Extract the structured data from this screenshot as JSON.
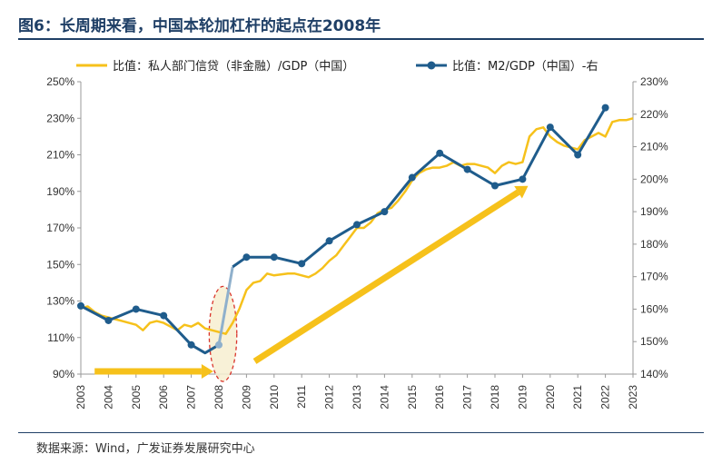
{
  "title": "图6：长周期来看，中国本轮加杠杆的起点在2008年",
  "source": "数据来源：Wind，广发证券发展研究中心",
  "colors": {
    "private": "#f6c11b",
    "m2": "#1f5c8c",
    "title": "#1f3f66",
    "arrow": "#f6c11b",
    "ellipse": "#d9342b"
  },
  "chart_data": {
    "type": "line",
    "x": [
      2003,
      2004,
      2005,
      2006,
      2007,
      2008,
      2009,
      2010,
      2011,
      2012,
      2013,
      2014,
      2015,
      2016,
      2017,
      2018,
      2019,
      2020,
      2021,
      2022,
      2023
    ],
    "x_tick_labels": [
      "2003",
      "2004",
      "2005",
      "2006",
      "2007",
      "2008",
      "2009",
      "2010",
      "2011",
      "2012",
      "2013",
      "2014",
      "2015",
      "2016",
      "2017",
      "2018",
      "2019",
      "2020",
      "2021",
      "2022",
      "2023"
    ],
    "xlim": [
      2003,
      2023
    ],
    "y_left": {
      "ylim": [
        90,
        250
      ],
      "ticks": [
        "90%",
        "110%",
        "130%",
        "150%",
        "170%",
        "190%",
        "210%",
        "230%",
        "250%"
      ],
      "tick_values": [
        90,
        110,
        130,
        150,
        170,
        190,
        210,
        230,
        250
      ]
    },
    "y_right": {
      "ylim": [
        140,
        230
      ],
      "ticks": [
        "140%",
        "150%",
        "160%",
        "170%",
        "180%",
        "190%",
        "200%",
        "210%",
        "220%",
        "230%"
      ],
      "tick_values": [
        140,
        150,
        160,
        170,
        180,
        190,
        200,
        210,
        220,
        230
      ]
    },
    "series": [
      {
        "name": "比值：私人部门信贷（非金融）/GDP（中国）",
        "axis": "left",
        "marker": false,
        "points": [
          [
            2003.0,
            126
          ],
          [
            2003.25,
            127
          ],
          [
            2003.5,
            124
          ],
          [
            2003.75,
            122
          ],
          [
            2004.0,
            121
          ],
          [
            2004.5,
            119
          ],
          [
            2005.0,
            117
          ],
          [
            2005.25,
            114
          ],
          [
            2005.5,
            118
          ],
          [
            2005.75,
            119
          ],
          [
            2006.0,
            118
          ],
          [
            2006.25,
            116
          ],
          [
            2006.5,
            114
          ],
          [
            2006.75,
            117
          ],
          [
            2007.0,
            116
          ],
          [
            2007.25,
            118
          ],
          [
            2007.5,
            115
          ],
          [
            2007.75,
            114
          ],
          [
            2008.0,
            113
          ],
          [
            2008.25,
            112
          ],
          [
            2008.5,
            118
          ],
          [
            2008.75,
            126
          ],
          [
            2009.0,
            136
          ],
          [
            2009.25,
            140
          ],
          [
            2009.5,
            141
          ],
          [
            2009.75,
            145
          ],
          [
            2010.0,
            144
          ],
          [
            2010.5,
            145
          ],
          [
            2010.75,
            145
          ],
          [
            2011.0,
            144
          ],
          [
            2011.25,
            143
          ],
          [
            2011.5,
            145
          ],
          [
            2011.75,
            148
          ],
          [
            2012.0,
            152
          ],
          [
            2012.25,
            155
          ],
          [
            2012.5,
            160
          ],
          [
            2012.75,
            165
          ],
          [
            2013.0,
            170
          ],
          [
            2013.25,
            170
          ],
          [
            2013.5,
            173
          ],
          [
            2013.75,
            178
          ],
          [
            2014.0,
            180
          ],
          [
            2014.25,
            181
          ],
          [
            2014.5,
            185
          ],
          [
            2014.75,
            190
          ],
          [
            2015.0,
            196
          ],
          [
            2015.25,
            200
          ],
          [
            2015.5,
            202
          ],
          [
            2015.75,
            203
          ],
          [
            2016.0,
            203
          ],
          [
            2016.25,
            204
          ],
          [
            2016.5,
            206
          ],
          [
            2016.75,
            204
          ],
          [
            2017.0,
            205
          ],
          [
            2017.25,
            205
          ],
          [
            2017.5,
            204
          ],
          [
            2017.75,
            203
          ],
          [
            2018.0,
            200
          ],
          [
            2018.25,
            204
          ],
          [
            2018.5,
            206
          ],
          [
            2018.75,
            205
          ],
          [
            2019.0,
            206
          ],
          [
            2019.25,
            220
          ],
          [
            2019.5,
            224
          ],
          [
            2019.75,
            225
          ],
          [
            2020.0,
            220
          ],
          [
            2020.25,
            217
          ],
          [
            2020.5,
            215
          ],
          [
            2020.75,
            214
          ],
          [
            2021.0,
            213
          ],
          [
            2021.25,
            218
          ],
          [
            2021.5,
            220
          ],
          [
            2021.75,
            222
          ],
          [
            2022.0,
            220
          ],
          [
            2022.25,
            228
          ],
          [
            2022.5,
            229
          ],
          [
            2022.75,
            229
          ],
          [
            2023.0,
            230
          ]
        ]
      },
      {
        "name": "比值：M2/GDP（中国）-右",
        "axis": "right",
        "marker": true,
        "points": [
          [
            2003.0,
            161
          ],
          [
            2004.0,
            156.5
          ],
          [
            2005.0,
            160
          ],
          [
            2006.0,
            158
          ],
          [
            2007.0,
            149
          ],
          [
            2007.5,
            146.5
          ],
          [
            2008.0,
            149
          ],
          [
            2008.5,
            173
          ],
          [
            2009.0,
            176
          ],
          [
            2010.0,
            176
          ],
          [
            2011.0,
            174
          ],
          [
            2012.0,
            181
          ],
          [
            2013.0,
            186
          ],
          [
            2014.0,
            190
          ],
          [
            2015.0,
            200.5
          ],
          [
            2016.0,
            208
          ],
          [
            2017.0,
            203
          ],
          [
            2018.0,
            198
          ],
          [
            2019.0,
            200
          ],
          [
            2020.0,
            216
          ],
          [
            2021.0,
            207.5
          ],
          [
            2022.0,
            222
          ]
        ],
        "marker_points": [
          [
            2003.0,
            161
          ],
          [
            2004.0,
            156.5
          ],
          [
            2005.0,
            160
          ],
          [
            2006.0,
            158
          ],
          [
            2007.0,
            149
          ],
          [
            2008.0,
            149
          ],
          [
            2009.0,
            176
          ],
          [
            2010.0,
            176
          ],
          [
            2011.0,
            174
          ],
          [
            2012.0,
            181
          ],
          [
            2013.0,
            186
          ],
          [
            2014.0,
            190
          ],
          [
            2015.0,
            200.5
          ],
          [
            2016.0,
            208
          ],
          [
            2017.0,
            203
          ],
          [
            2018.0,
            198
          ],
          [
            2019.0,
            200
          ],
          [
            2020.0,
            216
          ],
          [
            2021.0,
            207.5
          ],
          [
            2022.0,
            222
          ]
        ],
        "highlight_segment": {
          "from": 2008.0,
          "to": 2008.5,
          "color": "#8fb0cc"
        }
      }
    ],
    "annotations": [
      {
        "type": "arrow",
        "from": [
          2003.5,
          91.5
        ],
        "to": [
          2007.8,
          91.5
        ]
      },
      {
        "type": "arrow",
        "from": [
          2009.3,
          97
        ],
        "to": [
          2019.2,
          193
        ]
      },
      {
        "type": "ellipse",
        "center": [
          2008.15,
          112
        ],
        "rx_years": 0.5,
        "ry_pct": 26
      }
    ],
    "legend_position": "top",
    "grid": false
  }
}
